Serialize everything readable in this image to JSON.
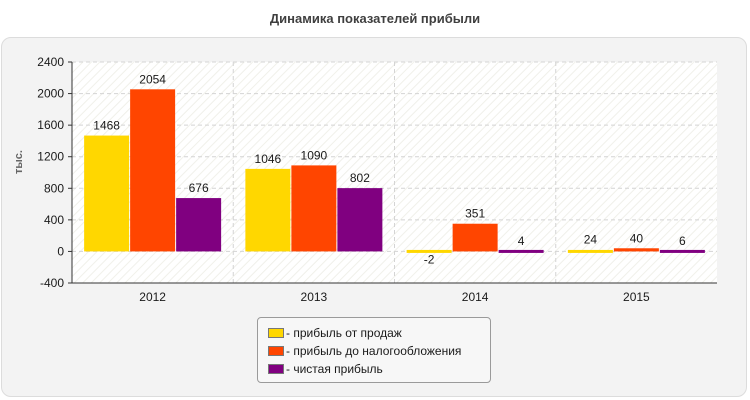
{
  "chart_data": {
    "type": "bar",
    "title": "Динамика показателей прибыли",
    "ylabel": "тыс.",
    "xlabel": "",
    "categories": [
      "2012",
      "2013",
      "2014",
      "2015"
    ],
    "ylim": [
      -400,
      2400
    ],
    "yticks": [
      -400,
      0,
      400,
      800,
      1200,
      1600,
      2000,
      2400
    ],
    "grid": true,
    "legend_position": "bottom",
    "series": [
      {
        "name": "прибыль от продаж",
        "color": "#ffd700",
        "values": [
          1468,
          1046,
          -2,
          24
        ]
      },
      {
        "name": "прибыль до налогообложения",
        "color": "#ff4500",
        "values": [
          2054,
          1090,
          351,
          40
        ]
      },
      {
        "name": "чистая прибыль",
        "color": "#800080",
        "values": [
          676,
          802,
          4,
          6
        ]
      }
    ]
  },
  "legend": {
    "prefix": "- ",
    "labels": [
      "- прибыль от продаж",
      "- прибыль до налогообложения",
      "- чистая прибыль"
    ]
  }
}
